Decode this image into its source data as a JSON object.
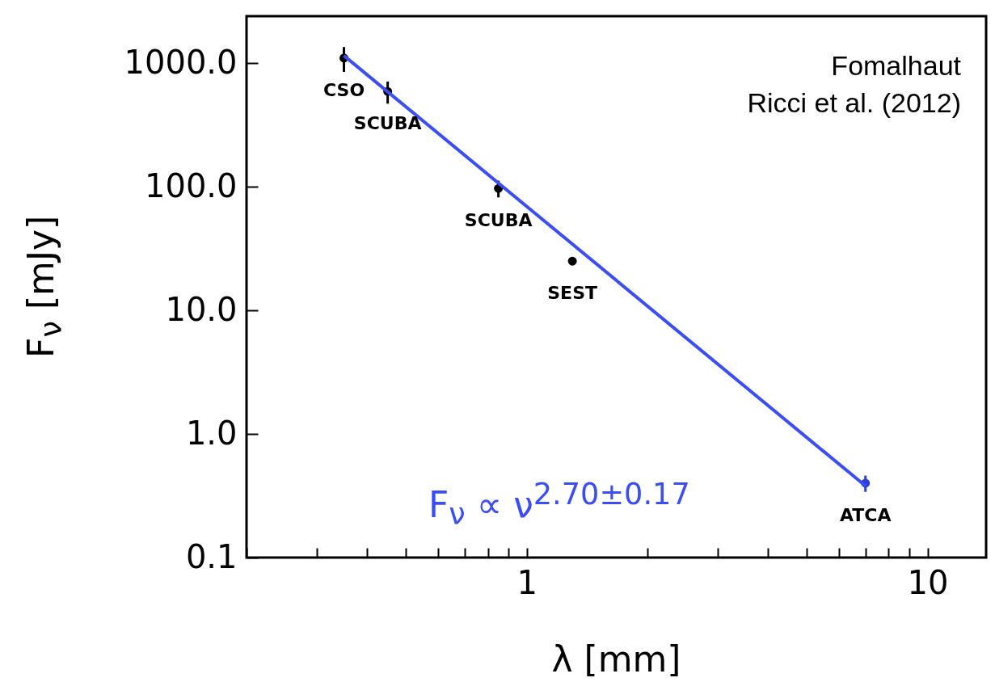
{
  "chart_data": {
    "type": "scatter",
    "log": "xy",
    "grid": false,
    "marker": "circle",
    "xlabel": "λ [mm]",
    "ylabel": "F$_{ν}$ [mJy]",
    "xlim": [
      0.2,
      14
    ],
    "xticks": [
      {
        "value": 0.2,
        "label": null
      },
      {
        "value": 0.3,
        "label": null
      },
      {
        "value": 0.4,
        "label": null
      },
      {
        "value": 0.5,
        "label": null
      },
      {
        "value": 0.6,
        "label": null
      },
      {
        "value": 0.7,
        "label": null
      },
      {
        "value": 0.8,
        "label": null
      },
      {
        "value": 0.9,
        "label": null
      },
      1,
      {
        "value": 2,
        "label": null
      },
      {
        "value": 3,
        "label": null
      },
      {
        "value": 4,
        "label": null
      },
      {
        "value": 5,
        "label": null
      },
      {
        "value": 6,
        "label": null
      },
      {
        "value": 7,
        "label": null
      },
      {
        "value": 8,
        "label": null
      },
      {
        "value": 9,
        "label": null
      },
      10
    ],
    "ylim": [
      0.1,
      2400
    ],
    "yticks": [
      {
        "value": 0.1,
        "label": "0.1"
      },
      {
        "value": 1,
        "label": "1.0"
      },
      {
        "value": 10,
        "label": "10.0"
      },
      {
        "value": 100,
        "label": "100.0"
      },
      {
        "value": 1000,
        "label": "1000.0"
      }
    ],
    "series": [
      {
        "type": "scatter",
        "x": [
          0.35,
          0.45,
          0.85,
          1.3,
          7
        ],
        "values": [
          1100,
          590,
          97,
          25,
          0.4
        ],
        "errors": [
          250,
          120,
          15,
          null,
          0.06
        ],
        "colors": [
          "#000000",
          "#000000",
          "#000000",
          "#000000",
          "#2b3fe0"
        ]
      },
      {
        "type": "line",
        "marker": "none",
        "name": "F$_{ν}$ ∝ ν$^{2.70±0.17}$",
        "color": "#3b4ef5",
        "x": [
          0.35,
          7
        ],
        "values": [
          1150,
          0.38
        ]
      }
    ],
    "annotations": [
      {
        "text": "CSO",
        "x": 0.35,
        "y": 1100
      },
      {
        "text": "SCUBA",
        "x": 0.45,
        "y": 590
      },
      {
        "text": "SCUBA",
        "x": 0.85,
        "y": 97
      },
      {
        "text": "SEST",
        "x": 1.3,
        "y": 25
      },
      {
        "text": "ATCA",
        "x": 7,
        "y": 0.4
      },
      "Fomalhaut",
      "Ricci et al. (2012)"
    ]
  }
}
